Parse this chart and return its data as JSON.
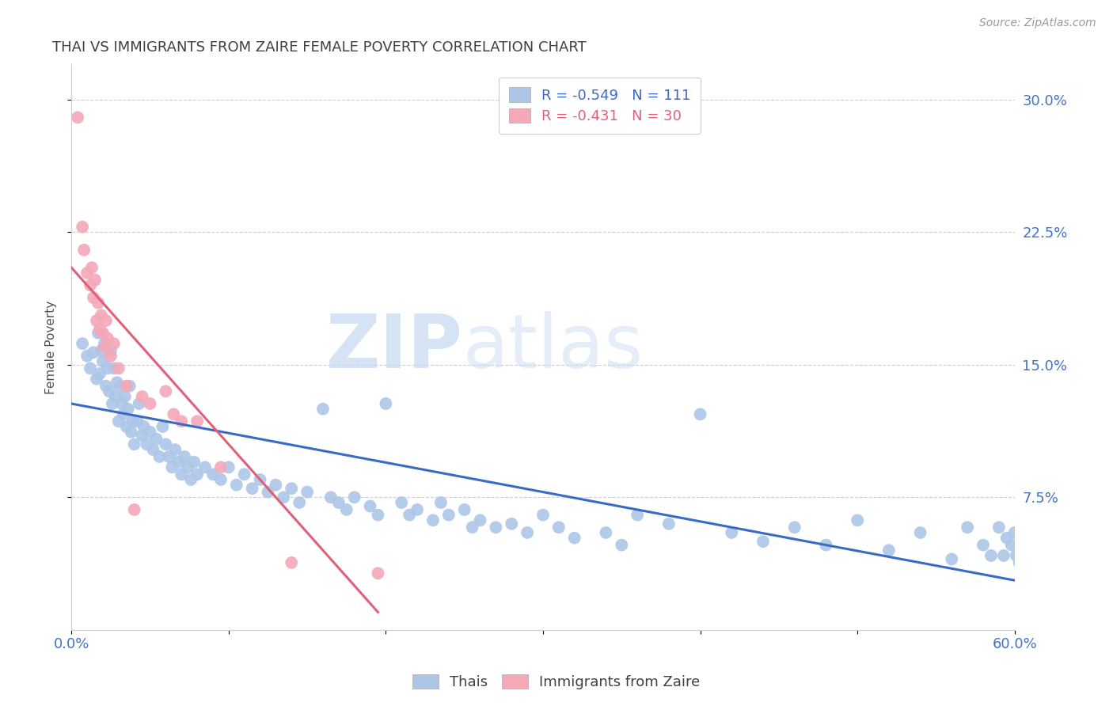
{
  "title": "THAI VS IMMIGRANTS FROM ZAIRE FEMALE POVERTY CORRELATION CHART",
  "source": "Source: ZipAtlas.com",
  "ylabel": "Female Poverty",
  "xlim": [
    0.0,
    0.6
  ],
  "ylim": [
    0.0,
    0.32
  ],
  "ytick_positions": [
    0.075,
    0.15,
    0.225,
    0.3
  ],
  "ytick_labels": [
    "7.5%",
    "15.0%",
    "22.5%",
    "30.0%"
  ],
  "legend_blue_text": "R = -0.549   N = 111",
  "legend_pink_text": "R = -0.431   N = 30",
  "blue_color": "#adc6e8",
  "pink_color": "#f4a8b8",
  "line_blue": "#3a6bc4",
  "line_pink": "#e0607a",
  "watermark_zip": "ZIP",
  "watermark_atlas": "atlas",
  "grid_color": "#d0d0d0",
  "title_color": "#404040",
  "axis_label_color": "#505050",
  "tick_color_blue": "#4472c4",
  "thais_x": [
    0.007,
    0.01,
    0.012,
    0.014,
    0.016,
    0.017,
    0.018,
    0.019,
    0.02,
    0.021,
    0.022,
    0.023,
    0.024,
    0.025,
    0.026,
    0.027,
    0.028,
    0.029,
    0.03,
    0.031,
    0.032,
    0.033,
    0.034,
    0.035,
    0.036,
    0.037,
    0.038,
    0.039,
    0.04,
    0.042,
    0.043,
    0.045,
    0.046,
    0.048,
    0.05,
    0.052,
    0.054,
    0.056,
    0.058,
    0.06,
    0.062,
    0.064,
    0.066,
    0.068,
    0.07,
    0.072,
    0.074,
    0.076,
    0.078,
    0.08,
    0.085,
    0.09,
    0.095,
    0.1,
    0.105,
    0.11,
    0.115,
    0.12,
    0.125,
    0.13,
    0.135,
    0.14,
    0.145,
    0.15,
    0.16,
    0.165,
    0.17,
    0.175,
    0.18,
    0.19,
    0.195,
    0.2,
    0.21,
    0.215,
    0.22,
    0.23,
    0.235,
    0.24,
    0.25,
    0.255,
    0.26,
    0.27,
    0.28,
    0.29,
    0.3,
    0.31,
    0.32,
    0.34,
    0.35,
    0.36,
    0.38,
    0.4,
    0.42,
    0.44,
    0.46,
    0.48,
    0.5,
    0.52,
    0.54,
    0.56,
    0.57,
    0.58,
    0.585,
    0.59,
    0.593,
    0.595,
    0.598,
    0.6,
    0.601,
    0.603,
    0.605
  ],
  "thais_y": [
    0.162,
    0.155,
    0.148,
    0.157,
    0.142,
    0.168,
    0.145,
    0.158,
    0.152,
    0.162,
    0.138,
    0.148,
    0.135,
    0.158,
    0.128,
    0.148,
    0.132,
    0.14,
    0.118,
    0.138,
    0.128,
    0.122,
    0.132,
    0.115,
    0.125,
    0.138,
    0.112,
    0.118,
    0.105,
    0.118,
    0.128,
    0.11,
    0.115,
    0.105,
    0.112,
    0.102,
    0.108,
    0.098,
    0.115,
    0.105,
    0.098,
    0.092,
    0.102,
    0.095,
    0.088,
    0.098,
    0.092,
    0.085,
    0.095,
    0.088,
    0.092,
    0.088,
    0.085,
    0.092,
    0.082,
    0.088,
    0.08,
    0.085,
    0.078,
    0.082,
    0.075,
    0.08,
    0.072,
    0.078,
    0.125,
    0.075,
    0.072,
    0.068,
    0.075,
    0.07,
    0.065,
    0.128,
    0.072,
    0.065,
    0.068,
    0.062,
    0.072,
    0.065,
    0.068,
    0.058,
    0.062,
    0.058,
    0.06,
    0.055,
    0.065,
    0.058,
    0.052,
    0.055,
    0.048,
    0.065,
    0.06,
    0.122,
    0.055,
    0.05,
    0.058,
    0.048,
    0.062,
    0.045,
    0.055,
    0.04,
    0.058,
    0.048,
    0.042,
    0.058,
    0.042,
    0.052,
    0.048,
    0.055,
    0.042,
    0.038,
    0.035
  ],
  "zaire_x": [
    0.004,
    0.007,
    0.008,
    0.01,
    0.012,
    0.013,
    0.014,
    0.015,
    0.016,
    0.017,
    0.018,
    0.019,
    0.02,
    0.021,
    0.022,
    0.023,
    0.025,
    0.027,
    0.03,
    0.035,
    0.04,
    0.045,
    0.05,
    0.06,
    0.065,
    0.07,
    0.08,
    0.095,
    0.14,
    0.195
  ],
  "zaire_y": [
    0.29,
    0.228,
    0.215,
    0.202,
    0.195,
    0.205,
    0.188,
    0.198,
    0.175,
    0.185,
    0.17,
    0.178,
    0.168,
    0.16,
    0.175,
    0.165,
    0.155,
    0.162,
    0.148,
    0.138,
    0.068,
    0.132,
    0.128,
    0.135,
    0.122,
    0.118,
    0.118,
    0.092,
    0.038,
    0.032
  ],
  "blue_line_x0": 0.0,
  "blue_line_y0": 0.128,
  "blue_line_x1": 0.6,
  "blue_line_y1": 0.028,
  "pink_line_x0": 0.0,
  "pink_line_y0": 0.205,
  "pink_line_x1": 0.195,
  "pink_line_y1": 0.01
}
